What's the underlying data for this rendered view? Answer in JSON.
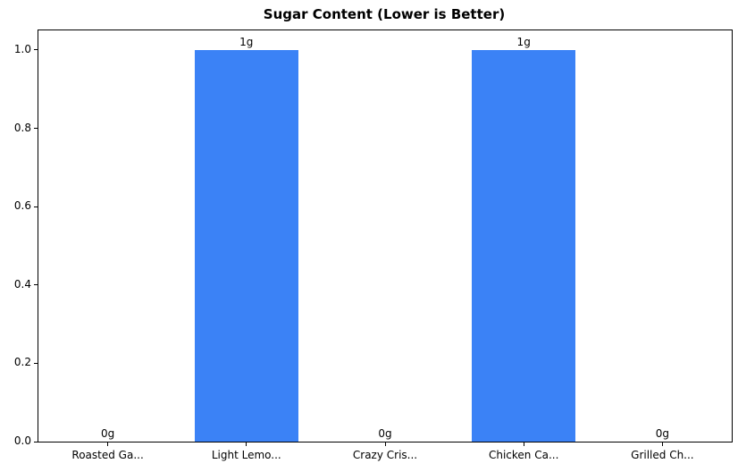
{
  "chart_data": {
    "type": "bar",
    "title": "Sugar Content (Lower is Better)",
    "categories": [
      "Roasted Ga...",
      "Light Lemo...",
      "Crazy Cris...",
      "Chicken Ca...",
      "Grilled Ch..."
    ],
    "values": [
      0,
      1,
      0,
      1,
      0
    ],
    "value_labels": [
      "0g",
      "1g",
      "0g",
      "1g",
      "0g"
    ],
    "yticks": [
      0.0,
      0.2,
      0.4,
      0.6,
      0.8,
      1.0
    ],
    "ytick_labels": [
      "0.0",
      "0.2",
      "0.4",
      "0.6",
      "0.8",
      "1.0"
    ],
    "ylim": [
      0,
      1.05
    ],
    "xlabel": "",
    "ylabel": "",
    "grid": false,
    "legend_position": "none",
    "bar_color": "#3b82f6",
    "bar_width_fraction": 0.75
  }
}
